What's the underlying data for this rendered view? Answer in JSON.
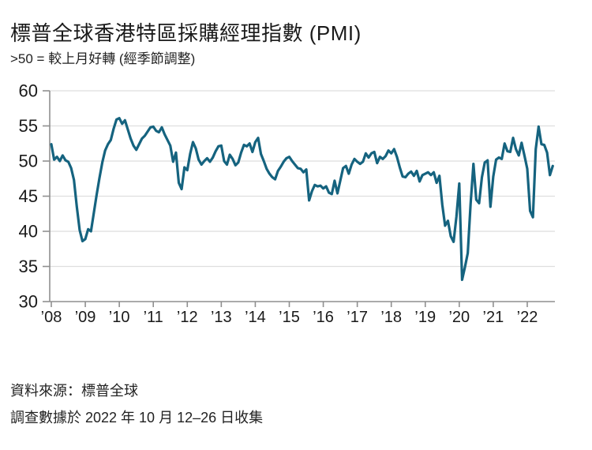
{
  "header": {
    "title": "標普全球香港特區採購經理指數 (PMI)",
    "subtitle": ">50 = 較上月好轉 (經季節調整)"
  },
  "footer": {
    "source": "資料來源：標普全球",
    "note": "調查數據於 2022 年 10 月 12–26 日收集"
  },
  "chart_data": {
    "type": "line",
    "title": "標普全球香港特區採購經理指數 (PMI)",
    "subtitle": ">50 = 較上月好轉 (經季節調整)",
    "xlabel": "",
    "ylabel": "",
    "ylim": [
      30,
      60
    ],
    "y_ticks": [
      30,
      35,
      40,
      45,
      50,
      55,
      60
    ],
    "x_tick_labels": [
      "’08",
      "’09",
      "’10",
      "’11",
      "’12",
      "’13",
      "’14",
      "’15",
      "’16",
      "’17",
      "’18",
      "’19",
      "’20",
      "’21",
      "’22"
    ],
    "grid": true,
    "legend_position": "none",
    "line_color": "#15637F",
    "series": [
      {
        "name": "香港特區採購經理指數 (經季節調整)",
        "start_month": "2008-01",
        "end_month": "2022-10",
        "frequency": "monthly",
        "values": [
          52.4,
          50.2,
          50.6,
          50.0,
          50.8,
          50.1,
          49.9,
          49.0,
          47.3,
          43.5,
          40.2,
          38.6,
          38.9,
          40.3,
          40.0,
          42.6,
          45.2,
          47.6,
          49.8,
          51.5,
          52.4,
          53.0,
          54.6,
          55.9,
          56.1,
          55.3,
          55.8,
          54.5,
          53.2,
          52.2,
          51.6,
          52.4,
          53.2,
          53.6,
          54.2,
          54.8,
          54.9,
          54.3,
          54.1,
          54.8,
          53.8,
          53.0,
          52.2,
          49.9,
          51.2,
          46.9,
          46.0,
          49.1,
          48.7,
          51.0,
          52.7,
          51.8,
          50.2,
          49.5,
          50.0,
          50.4,
          49.9,
          50.5,
          51.4,
          52.1,
          52.2,
          50.0,
          49.5,
          50.9,
          50.3,
          49.4,
          49.8,
          51.2,
          52.3,
          52.1,
          52.5,
          51.3,
          52.7,
          53.3,
          51.0,
          50.0,
          48.9,
          48.2,
          47.7,
          47.4,
          48.6,
          49.2,
          49.9,
          50.4,
          50.6,
          50.0,
          49.5,
          49.0,
          48.9,
          48.4,
          48.8,
          44.4,
          45.7,
          46.6,
          46.4,
          46.5,
          46.1,
          46.4,
          45.5,
          45.3,
          47.2,
          45.4,
          47.2,
          49.0,
          49.3,
          48.2,
          49.5,
          50.3,
          49.9,
          49.6,
          49.9,
          51.1,
          50.5,
          51.1,
          51.3,
          49.7,
          50.6,
          50.3,
          50.7,
          51.5,
          51.1,
          51.7,
          50.6,
          49.1,
          47.8,
          47.7,
          48.2,
          48.5,
          47.9,
          48.6,
          47.1,
          48.0,
          48.2,
          48.4,
          48.0,
          48.4,
          46.9,
          47.9,
          43.8,
          40.8,
          41.5,
          39.3,
          38.5,
          42.1,
          46.8,
          33.1,
          34.9,
          36.9,
          43.9,
          49.6,
          44.5,
          44.0,
          47.7,
          49.8,
          50.1,
          43.5,
          47.8,
          50.2,
          50.5,
          50.3,
          52.5,
          51.4,
          51.3,
          53.3,
          51.7,
          50.8,
          52.6,
          50.8,
          48.9,
          42.9,
          42.0,
          51.7,
          54.9,
          52.4,
          52.3,
          51.2,
          48.0,
          49.3
        ]
      }
    ]
  }
}
